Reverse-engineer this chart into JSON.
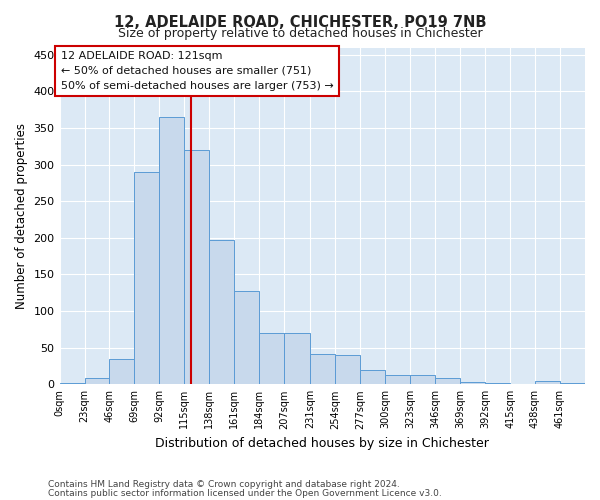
{
  "title1": "12, ADELAIDE ROAD, CHICHESTER, PO19 7NB",
  "title2": "Size of property relative to detached houses in Chichester",
  "xlabel": "Distribution of detached houses by size in Chichester",
  "ylabel": "Number of detached properties",
  "bin_edges": [
    0,
    23,
    46,
    69,
    92,
    115,
    138,
    161,
    184,
    207,
    231,
    254,
    277,
    300,
    323,
    346,
    369,
    392,
    415,
    438,
    461,
    484
  ],
  "bar_heights": [
    2,
    8,
    35,
    290,
    365,
    320,
    197,
    128,
    70,
    70,
    42,
    40,
    20,
    13,
    13,
    8,
    3,
    2,
    1,
    5,
    2
  ],
  "bar_color": "#c8d9ec",
  "bar_edge_color": "#5b9bd5",
  "vline_x": 121,
  "vline_color": "#cc0000",
  "annotation_title": "12 ADELAIDE ROAD: 121sqm",
  "annotation_line1": "← 50% of detached houses are smaller (751)",
  "annotation_line2": "50% of semi-detached houses are larger (753) →",
  "annotation_box_color": "#cc0000",
  "ylim": [
    0,
    460
  ],
  "yticks": [
    0,
    50,
    100,
    150,
    200,
    250,
    300,
    350,
    400,
    450
  ],
  "fig_bg_color": "#ffffff",
  "plot_bg_color": "#dce9f5",
  "grid_color": "#ffffff",
  "footer1": "Contains HM Land Registry data © Crown copyright and database right 2024.",
  "footer2": "Contains public sector information licensed under the Open Government Licence v3.0.",
  "tick_labels": [
    "0sqm",
    "23sqm",
    "46sqm",
    "69sqm",
    "92sqm",
    "115sqm",
    "138sqm",
    "161sqm",
    "184sqm",
    "207sqm",
    "231sqm",
    "254sqm",
    "277sqm",
    "300sqm",
    "323sqm",
    "346sqm",
    "369sqm",
    "392sqm",
    "415sqm",
    "438sqm",
    "461sqm"
  ]
}
